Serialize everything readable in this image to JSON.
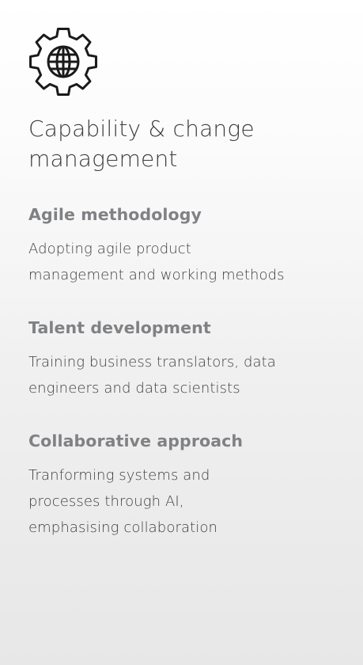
{
  "card": {
    "icon": "gear-globe-icon",
    "title": "Capability & change\nmanagement",
    "sections": [
      {
        "heading": "Agile methodology",
        "body": "Adopting agile product\nmanagement and working methods"
      },
      {
        "heading": "Talent development",
        "body": "Training business translators, data\nengineers and data scientists"
      },
      {
        "heading": "Collaborative approach",
        "body": "Tranforming systems and\nprocesses through AI,\nemphasising collaboration"
      }
    ]
  },
  "colors": {
    "heading": "#808184",
    "body_text": "#3f3f3f",
    "icon_stroke": "#1a1a1a"
  }
}
